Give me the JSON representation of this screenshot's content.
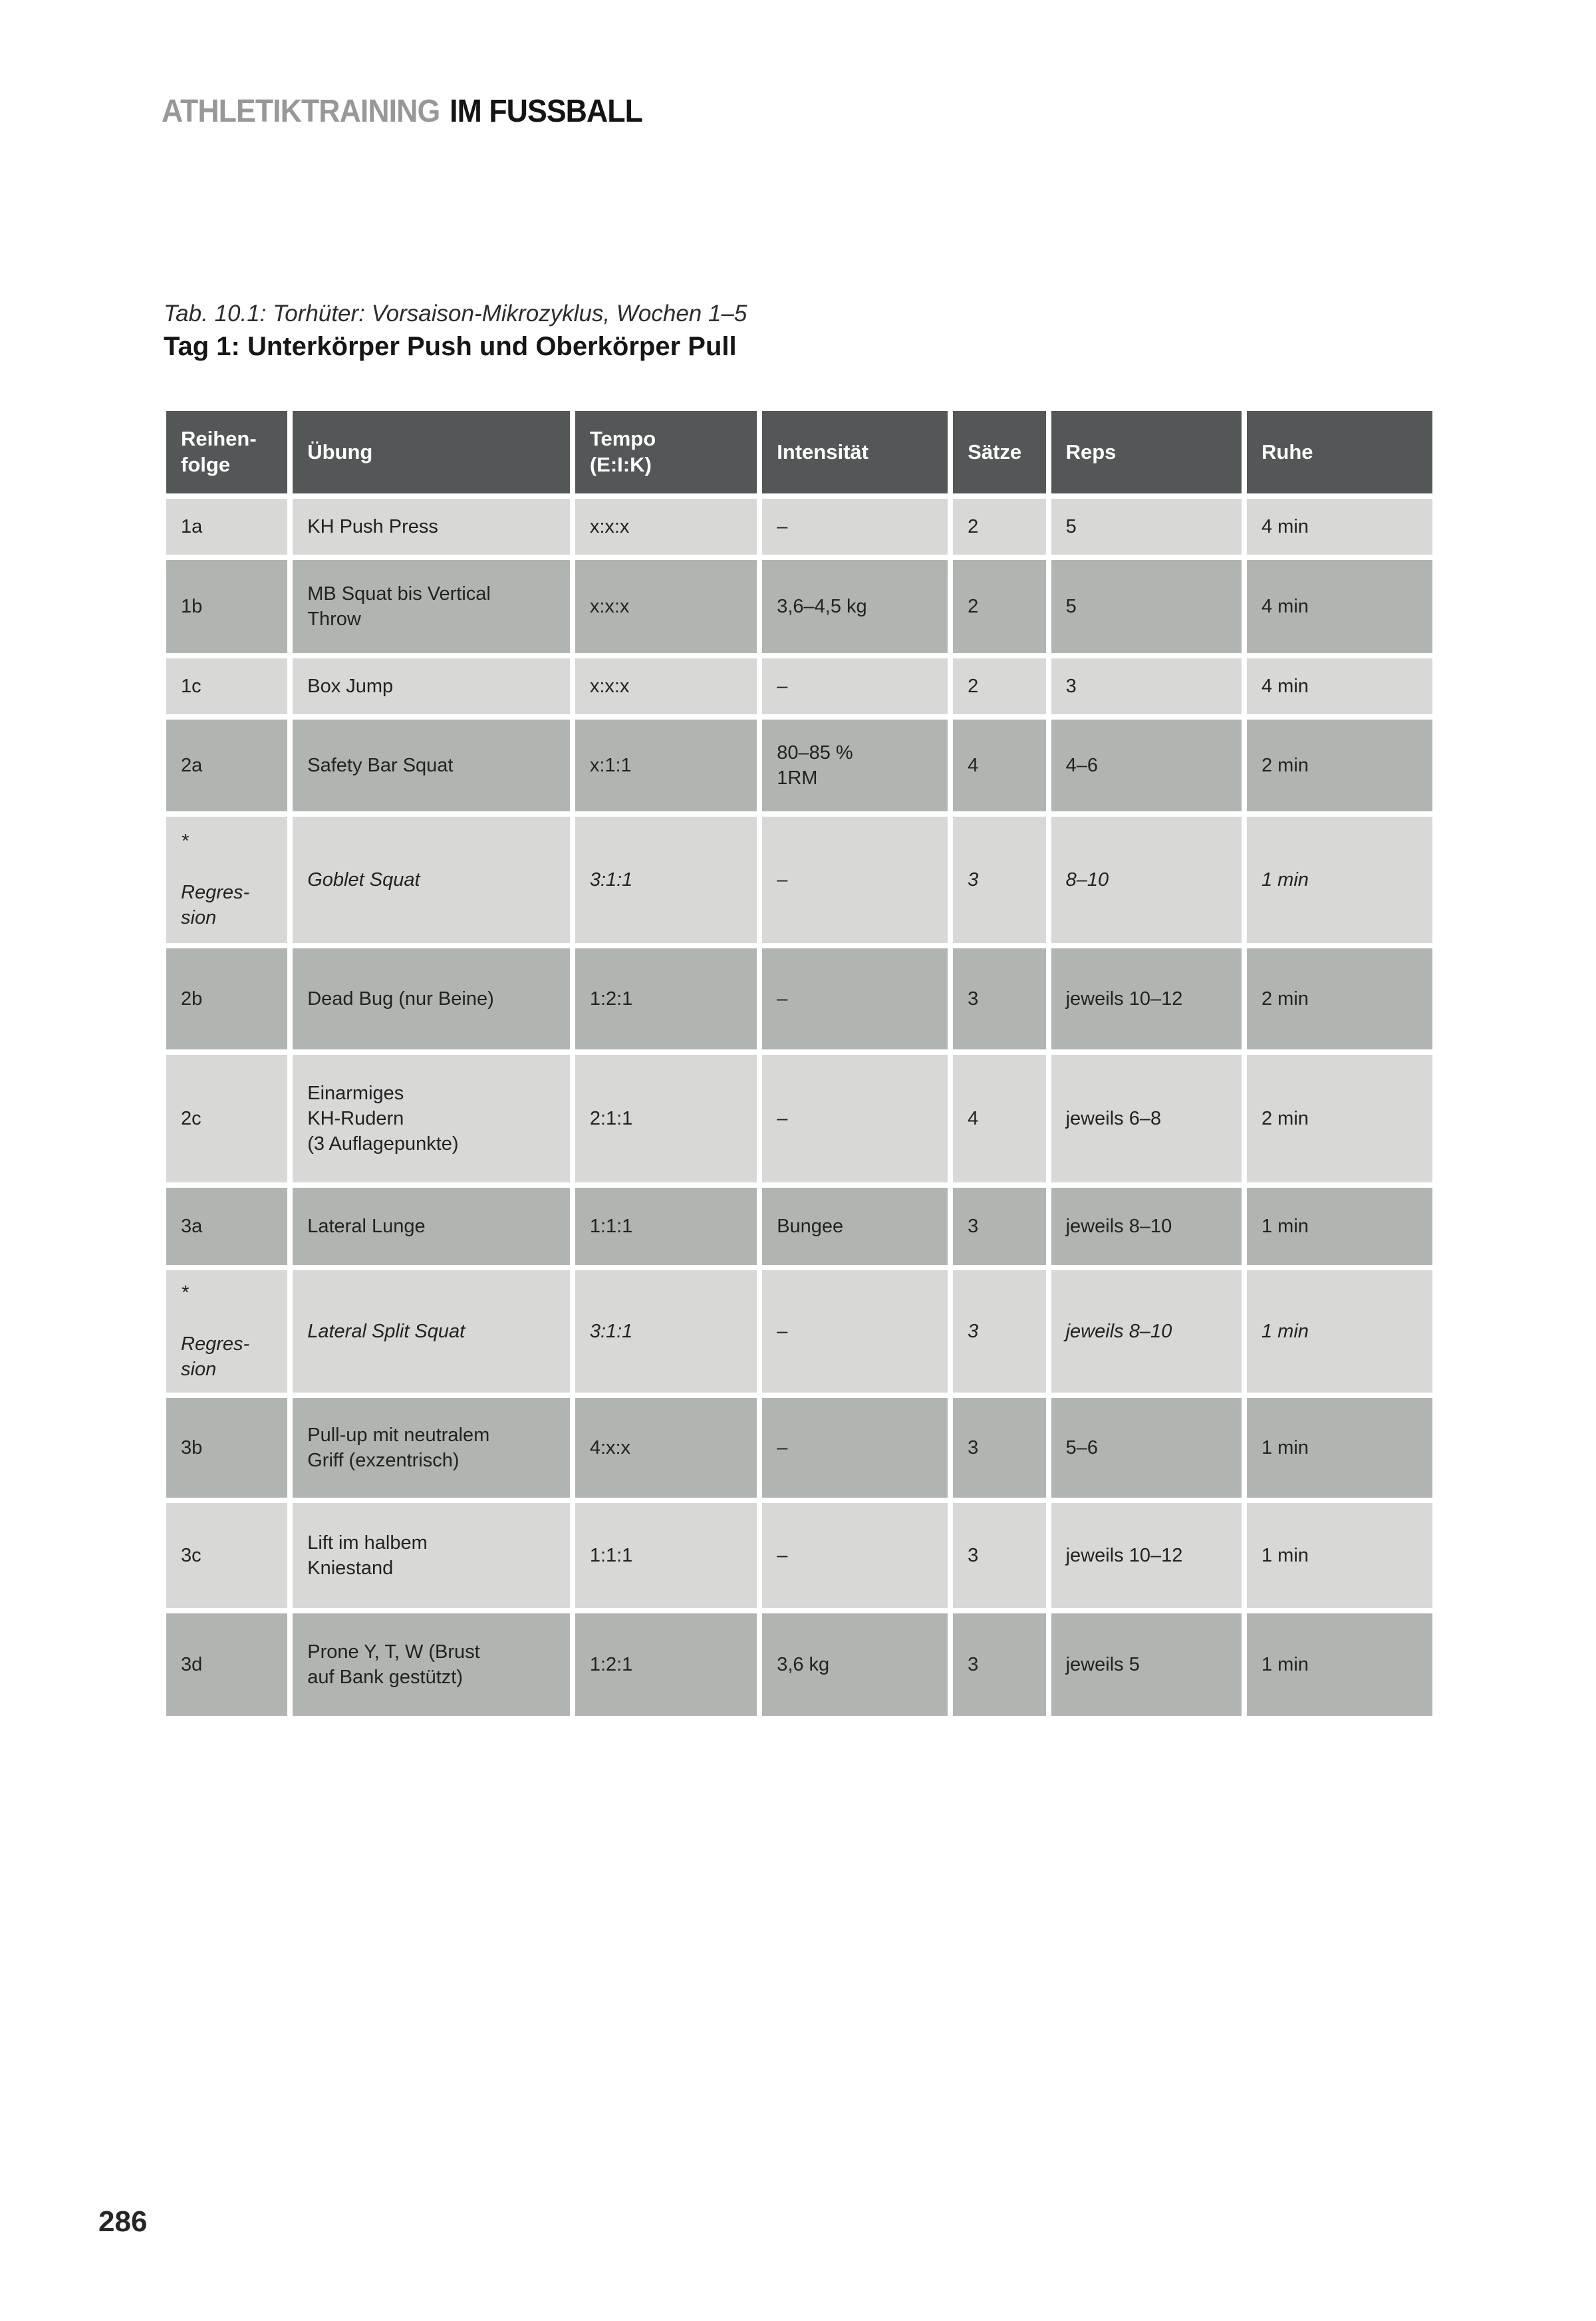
{
  "page": {
    "brand_gray": "ATHLETIKTRAINING",
    "brand_black": "IM FUSSBALL",
    "caption": "Tab. 10.1: Torhüter: Vorsaison-Mikrozyklus, Wochen 1–5",
    "title": "Tag 1: Unterkörper Push und Oberkörper Pull",
    "page_number": "286"
  },
  "colors": {
    "header_bg": "#545757",
    "row_light": "#d8d9d7",
    "row_dark": "#b1b5b1",
    "brand_gray_text": "#98989a",
    "brand_black_text": "#141414"
  },
  "table": {
    "headers": [
      "Reihen-\nfolge",
      "Übung",
      "Tempo\n(E:I:K)",
      "Intensität",
      "Sätze",
      "Reps",
      "Ruhe"
    ],
    "rows": [
      {
        "cells": [
          "1a",
          "KH Push Press",
          "x:x:x",
          "–",
          "2",
          "5",
          "4 min"
        ]
      },
      {
        "cells": [
          "1b",
          "MB Squat bis Vertical\nThrow",
          "x:x:x",
          "3,6–4,5 kg",
          "2",
          "5",
          "4 min"
        ]
      },
      {
        "cells": [
          "1c",
          "Box Jump",
          "x:x:x",
          "–",
          "2",
          "3",
          "4 min"
        ]
      },
      {
        "cells": [
          "2a",
          "Safety Bar Squat",
          "x:1:1",
          "80–85 %\n1RM",
          "4",
          "4–6",
          "2 min"
        ]
      },
      {
        "cells": [
          "*\n\nRegres-\nsion",
          "Goblet Squat",
          "3:1:1",
          "–",
          "3",
          "8–10",
          "1 min"
        ]
      },
      {
        "cells": [
          "2b",
          "Dead Bug (nur Beine)",
          "1:2:1",
          "–",
          "3",
          "jeweils 10–12",
          "2 min"
        ]
      },
      {
        "cells": [
          "2c",
          "Einarmiges\nKH-Rudern\n(3 Auflagepunkte)",
          "2:1:1",
          "–",
          "4",
          "jeweils 6–8",
          "2 min"
        ]
      },
      {
        "cells": [
          "3a",
          "Lateral Lunge",
          "1:1:1",
          "Bungee",
          "3",
          "jeweils 8–10",
          "1 min"
        ]
      },
      {
        "cells": [
          "*\n\nRegres-\nsion",
          "Lateral Split Squat",
          "3:1:1",
          "–",
          "3",
          "jeweils 8–10",
          "1 min"
        ]
      },
      {
        "cells": [
          "3b",
          "Pull-up mit neutralem\nGriff (exzentrisch)",
          "4:x:x",
          "–",
          "3",
          "5–6",
          "1 min"
        ]
      },
      {
        "cells": [
          "3c",
          "Lift im halbem\nKniestand",
          "1:1:1",
          "–",
          "3",
          "jeweils 10–12",
          "1 min"
        ]
      },
      {
        "cells": [
          "3d",
          "Prone Y, T, W (Brust\nauf Bank gestützt)",
          "1:2:1",
          "3,6 kg",
          "3",
          "jeweils 5",
          "1 min"
        ]
      }
    ]
  }
}
